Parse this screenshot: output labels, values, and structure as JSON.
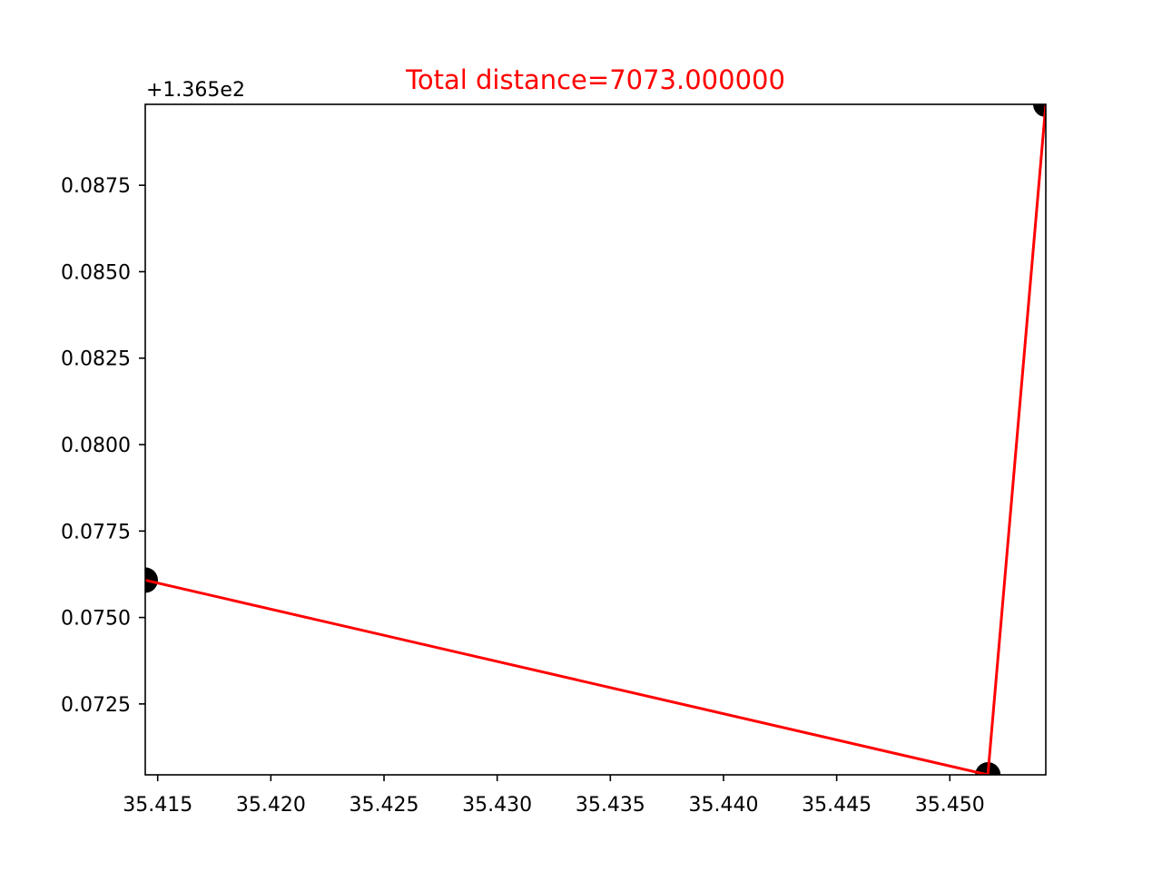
{
  "chart_data": {
    "type": "line",
    "title": "Total distance=7073.000000",
    "title_color": "#ff0000",
    "xlabel": "",
    "ylabel": "",
    "y_offset_label": "+1.365e2",
    "y_offset": 136.5,
    "xlim": [
      35.41445,
      35.45424
    ],
    "ylim_offset": [
      0.07045,
      0.08984
    ],
    "x_ticks": [
      35.415,
      35.42,
      35.425,
      35.43,
      35.435,
      35.44,
      35.445,
      35.45
    ],
    "x_tick_labels": [
      "35.415",
      "35.420",
      "35.425",
      "35.430",
      "35.435",
      "35.440",
      "35.445",
      "35.450"
    ],
    "y_ticks_offset": [
      0.0725,
      0.075,
      0.0775,
      0.08,
      0.0825,
      0.085,
      0.0875
    ],
    "y_tick_labels": [
      "0.0725",
      "0.0750",
      "0.0775",
      "0.0800",
      "0.0825",
      "0.0850",
      "0.0875"
    ],
    "grid": false,
    "line_color": "#ff0000",
    "point_color": "#000000",
    "points": [
      {
        "x": 35.41445,
        "y_offset": 0.07608
      },
      {
        "x": 35.45168,
        "y_offset": 0.07045
      },
      {
        "x": 35.45424,
        "y_offset": 0.08984
      }
    ]
  }
}
